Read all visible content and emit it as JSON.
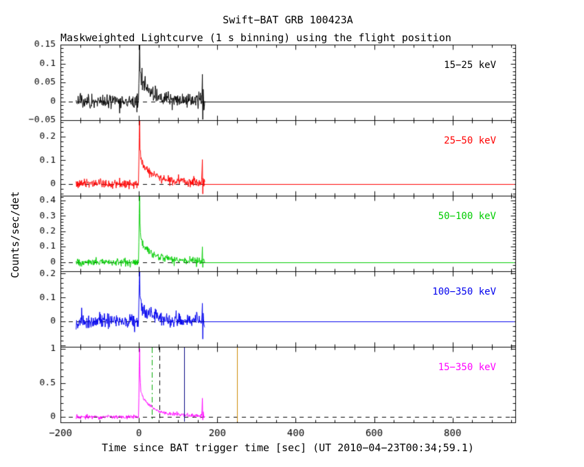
{
  "chart_data": {
    "type": "line",
    "title": "Swift−BAT GRB 100423A",
    "subtitle": "Maskweighted Lightcurve (1 s binning) using the flight position",
    "xlabel": "Time since BAT trigger time [sec] (UT 2010−04−23T00:34;59.1)",
    "ylabel": "Counts/sec/det",
    "grid": false,
    "legend_position": "inside-right-per-panel",
    "x_range": [
      -200,
      960
    ],
    "x_major_ticks": [
      -200,
      0,
      200,
      400,
      600,
      800
    ],
    "x_major_tick_labels": [
      "−200",
      "0",
      "200",
      "400",
      "600",
      "800"
    ],
    "x_minor_step": 50,
    "bin_seconds": 1,
    "data_time_range": [
      -160,
      168
    ],
    "noise_seed": 20100423,
    "zero_line": {
      "color": "#000000",
      "dash": [
        6,
        6
      ]
    },
    "panels": [
      {
        "label": "15−25 keV",
        "color": "#000000",
        "y_range": [
          -0.05,
          0.15
        ],
        "y_major_ticks": [
          -0.05,
          0,
          0.05,
          0.1,
          0.15
        ],
        "y_tick_labels": [
          "−0.05",
          "0",
          "0.05",
          "0.1",
          "0.15"
        ],
        "noise_sigma": 0.011,
        "zero_fill_after_end": true,
        "profile": [
          [
            -160,
            0
          ],
          [
            -1,
            0
          ],
          [
            0,
            0.04
          ],
          [
            1,
            0.1
          ],
          [
            2,
            0.145
          ],
          [
            3,
            0.09
          ],
          [
            5,
            0.06
          ],
          [
            8,
            0.05
          ],
          [
            12,
            0.042
          ],
          [
            20,
            0.035
          ],
          [
            30,
            0.025
          ],
          [
            45,
            0.015
          ],
          [
            60,
            0.01
          ],
          [
            90,
            0.006
          ],
          [
            120,
            0.004
          ],
          [
            150,
            0.003
          ],
          [
            160,
            0.003
          ],
          [
            162,
            0.07
          ],
          [
            163,
            -0.055
          ],
          [
            164,
            0.02
          ],
          [
            166,
            0
          ],
          [
            168,
            0
          ]
        ]
      },
      {
        "label": "25−50 keV",
        "color": "#ff0000",
        "y_range": [
          -0.05,
          0.27
        ],
        "y_major_ticks": [
          0,
          0.1,
          0.2
        ],
        "y_tick_labels": [
          "0",
          "0.1",
          "0.2"
        ],
        "noise_sigma": 0.01,
        "zero_fill_after_end": true,
        "profile": [
          [
            -160,
            0
          ],
          [
            -1,
            0
          ],
          [
            0,
            0.08
          ],
          [
            1,
            0.2
          ],
          [
            2,
            0.27
          ],
          [
            3,
            0.16
          ],
          [
            5,
            0.11
          ],
          [
            8,
            0.09
          ],
          [
            12,
            0.075
          ],
          [
            20,
            0.06
          ],
          [
            30,
            0.045
          ],
          [
            45,
            0.03
          ],
          [
            60,
            0.02
          ],
          [
            90,
            0.012
          ],
          [
            120,
            0.008
          ],
          [
            150,
            0.005
          ],
          [
            160,
            0.005
          ],
          [
            162,
            0.09
          ],
          [
            163,
            -0.04
          ],
          [
            164,
            0.02
          ],
          [
            166,
            0
          ],
          [
            168,
            0
          ]
        ]
      },
      {
        "label": "50−100 keV",
        "color": "#00cc00",
        "y_range": [
          -0.06,
          0.43
        ],
        "y_major_ticks": [
          0,
          0.1,
          0.2,
          0.3,
          0.4
        ],
        "y_tick_labels": [
          "0",
          "0.1",
          "0.2",
          "0.3",
          "0.4"
        ],
        "noise_sigma": 0.013,
        "zero_fill_after_end": true,
        "profile": [
          [
            -160,
            0
          ],
          [
            -1,
            0
          ],
          [
            0,
            0.12
          ],
          [
            1,
            0.3
          ],
          [
            2,
            0.43
          ],
          [
            3,
            0.24
          ],
          [
            5,
            0.16
          ],
          [
            8,
            0.13
          ],
          [
            12,
            0.1
          ],
          [
            20,
            0.08
          ],
          [
            30,
            0.06
          ],
          [
            45,
            0.04
          ],
          [
            60,
            0.025
          ],
          [
            90,
            0.015
          ],
          [
            120,
            0.01
          ],
          [
            150,
            0.006
          ],
          [
            160,
            0.006
          ],
          [
            162,
            0.1
          ],
          [
            163,
            -0.05
          ],
          [
            164,
            0.02
          ],
          [
            166,
            0
          ],
          [
            168,
            0
          ]
        ]
      },
      {
        "label": "100−350 keV",
        "color": "#0000ee",
        "y_range": [
          -0.107,
          0.21
        ],
        "y_major_ticks": [
          0,
          0.1,
          0.2
        ],
        "y_tick_labels": [
          "0",
          "0.1",
          "0.2"
        ],
        "noise_sigma": 0.016,
        "zero_fill_after_end": true,
        "profile": [
          [
            -160,
            0
          ],
          [
            -1,
            0
          ],
          [
            0,
            0.06
          ],
          [
            1,
            0.15
          ],
          [
            2,
            0.21
          ],
          [
            3,
            0.12
          ],
          [
            5,
            0.08
          ],
          [
            8,
            0.06
          ],
          [
            12,
            0.05
          ],
          [
            20,
            0.04
          ],
          [
            30,
            0.03
          ],
          [
            45,
            0.02
          ],
          [
            60,
            0.012
          ],
          [
            90,
            0.007
          ],
          [
            120,
            0.004
          ],
          [
            150,
            0.003
          ],
          [
            160,
            0.003
          ],
          [
            162,
            0.09
          ],
          [
            163,
            -0.06
          ],
          [
            164,
            0.02
          ],
          [
            166,
            0
          ],
          [
            168,
            0
          ]
        ]
      },
      {
        "label": "15−350 keV",
        "color": "#ff00ff",
        "y_range": [
          -0.08,
          1.03
        ],
        "y_major_ticks": [
          0,
          0.5,
          1
        ],
        "y_tick_labels": [
          "0",
          "0.5",
          "1"
        ],
        "noise_sigma": 0.015,
        "zero_fill_after_end": false,
        "profile": [
          [
            -160,
            0
          ],
          [
            -1,
            0
          ],
          [
            0,
            0.3
          ],
          [
            1,
            0.75
          ],
          [
            2,
            1.03
          ],
          [
            3,
            0.6
          ],
          [
            5,
            0.4
          ],
          [
            8,
            0.32
          ],
          [
            12,
            0.26
          ],
          [
            20,
            0.2
          ],
          [
            30,
            0.15
          ],
          [
            45,
            0.1
          ],
          [
            60,
            0.065
          ],
          [
            90,
            0.04
          ],
          [
            120,
            0.025
          ],
          [
            150,
            0.015
          ],
          [
            160,
            0.015
          ],
          [
            162,
            0.27
          ],
          [
            163,
            -0.06
          ],
          [
            164,
            0.05
          ],
          [
            166,
            0
          ],
          [
            168,
            0
          ]
        ],
        "vlines": [
          {
            "t": 33,
            "color": "#00aa00",
            "dash": [
              8,
              4,
              2,
              4
            ]
          },
          {
            "t": 52,
            "color": "#000000",
            "dash": [
              7,
              5
            ]
          },
          {
            "t": 115,
            "color": "#000080",
            "dash": []
          },
          {
            "t": 250,
            "color": "#cc8800",
            "dash": []
          }
        ]
      }
    ]
  }
}
